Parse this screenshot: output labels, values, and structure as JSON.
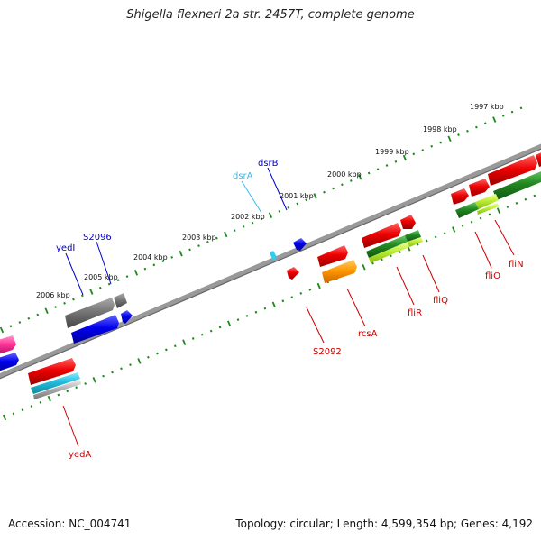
{
  "title": "Shigella flexneri 2a str. 2457T, complete genome",
  "footer": {
    "accession": "Accession: NC_004741",
    "summary": "Topology: circular; Length: 4,599,354 bp; Genes: 4,192"
  },
  "kbp_labels": [
    "1997 kbp",
    "1998 kbp",
    "1999 kbp",
    "2000 kbp",
    "2001 kbp",
    "2002 kbp",
    "2003 kbp",
    "2004 kbp",
    "2005 kbp",
    "2006 kbp"
  ],
  "gene_labels": {
    "top": [
      "dsrA",
      "dsrB",
      "S2096",
      "yedI"
    ],
    "bottom": [
      "S2092",
      "rcsA",
      "fliR",
      "fliQ",
      "fliO",
      "fliN",
      "yedA"
    ]
  },
  "colors": {
    "label_top_blue": "#0000cc",
    "label_top_cyan": "#33bbee",
    "label_bottom_red": "#cc0000",
    "track_dots": "#1a8a1a",
    "axis": "#888888"
  }
}
